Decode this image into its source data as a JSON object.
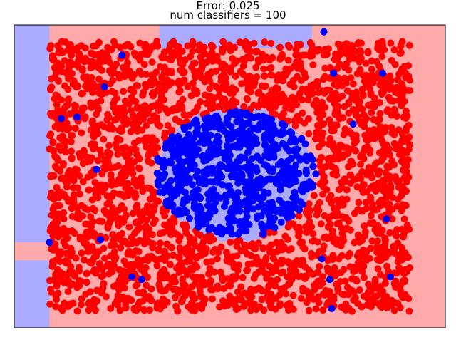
{
  "chart_data": {
    "type": "scatter",
    "title_lines": [
      "Error: 0.025",
      "num classifiers = 100"
    ],
    "xlabel": "",
    "ylabel": "",
    "xlim": [
      -1.1,
      1.1
    ],
    "ylim": [
      -1.1,
      1.1
    ],
    "grid": false,
    "ticks": "none",
    "colors": {
      "class_outer": "#ff0000",
      "class_inner": "#0000ff",
      "region_outer": "#ffaaaa",
      "region_inner": "#aaaaff",
      "axes_edge": "#000000"
    },
    "decision_regions": [
      {
        "class": "inner",
        "x": [
          -1.1,
          -0.92
        ],
        "y": [
          -1.1,
          0.55
        ]
      },
      {
        "class": "inner",
        "x": [
          -1.1,
          -0.92
        ],
        "y": [
          0.54,
          1.1
        ]
      },
      {
        "class": "inner",
        "x": [
          -0.36,
          0.42
        ],
        "y": [
          0.93,
          1.1
        ]
      },
      {
        "class": "inner",
        "x": [
          -1.1,
          -0.92
        ],
        "y": [
          -1.1,
          -0.61
        ]
      },
      {
        "class": "outer",
        "x": [
          -1.1,
          -0.92
        ],
        "y": [
          -0.61,
          -0.48
        ]
      },
      {
        "class": "inner",
        "x": [
          -0.36,
          0.42
        ],
        "y": [
          -0.48,
          0.52
        ],
        "shape": "ellipse"
      }
    ],
    "series": [
      {
        "class": "outer",
        "distribution": "uniform rectangle minus ellipse",
        "count": 2600,
        "bounds": {
          "x": [
            -0.92,
            0.92
          ],
          "y": [
            -0.98,
            0.98
          ]
        },
        "ellipse": {
          "cx": 0.03,
          "cy": 0.02,
          "rx": 0.42,
          "ry": 0.46
        }
      },
      {
        "class": "inner",
        "distribution": "uniform ellipse",
        "count": 700,
        "ellipse": {
          "cx": 0.03,
          "cy": 0.02,
          "rx": 0.42,
          "ry": 0.46
        }
      }
    ],
    "misclassified_inner_points": [
      [
        0.48,
        1.05
      ],
      [
        -0.55,
        0.88
      ],
      [
        0.78,
        0.75
      ],
      [
        -0.64,
        0.65
      ],
      [
        -0.86,
        0.42
      ],
      [
        -0.78,
        0.43
      ],
      [
        0.53,
        0.75
      ],
      [
        -0.68,
        0.05
      ],
      [
        0.63,
        0.38
      ],
      [
        -0.92,
        -0.48
      ],
      [
        -0.66,
        -0.46
      ],
      [
        0.47,
        -0.6
      ],
      [
        0.51,
        -0.75
      ],
      [
        -0.45,
        -0.75
      ],
      [
        0.82,
        -0.73
      ],
      [
        0.52,
        -0.96
      ],
      [
        -0.5,
        -0.73
      ],
      [
        0.8,
        -0.31
      ],
      [
        0.17,
        -0.42
      ],
      [
        0.27,
        0.33
      ]
    ],
    "marker_size_px": 5
  }
}
